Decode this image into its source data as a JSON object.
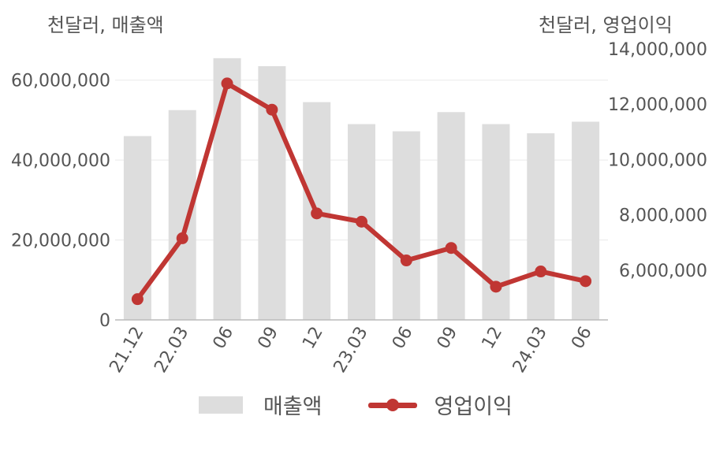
{
  "chart_data": {
    "type": "bar+line",
    "unit_left": "천달러, 매출액",
    "unit_right": "천달러, 영업이익",
    "categories": [
      "21.12",
      "22.03",
      "06",
      "09",
      "12",
      "23.03",
      "06",
      "09",
      "12",
      "24.03",
      "06"
    ],
    "series": [
      {
        "name": "매출액",
        "type": "bar",
        "axis": "left",
        "values": [
          46000000,
          52500000,
          65500000,
          63500000,
          54500000,
          49000000,
          47200000,
          52000000,
          49000000,
          46700000,
          49600000
        ]
      },
      {
        "name": "영업이익",
        "type": "line",
        "axis": "right",
        "values": [
          4950000,
          7150000,
          12750000,
          11800000,
          8050000,
          7750000,
          6350000,
          6800000,
          5400000,
          5950000,
          5600000
        ]
      }
    ],
    "y_left": {
      "ylim": [
        0,
        70000000
      ],
      "ticks": [
        "0",
        "20,000,000",
        "40,000,000",
        "60,000,000"
      ]
    },
    "y_right": {
      "ylim": [
        4000000,
        14000000
      ],
      "ticks": [
        "6,000,000",
        "8,000,000",
        "10,000,000",
        "12,000,000",
        "14,000,000"
      ]
    },
    "legend": {
      "position": "bottom",
      "items": [
        "매출액",
        "영업이익"
      ]
    },
    "grid": true,
    "colors": {
      "bar": "#dddddd",
      "line": "#c03633",
      "grid": "#eaeaea",
      "axis": "#bbbbbb",
      "text": "#555555"
    }
  }
}
